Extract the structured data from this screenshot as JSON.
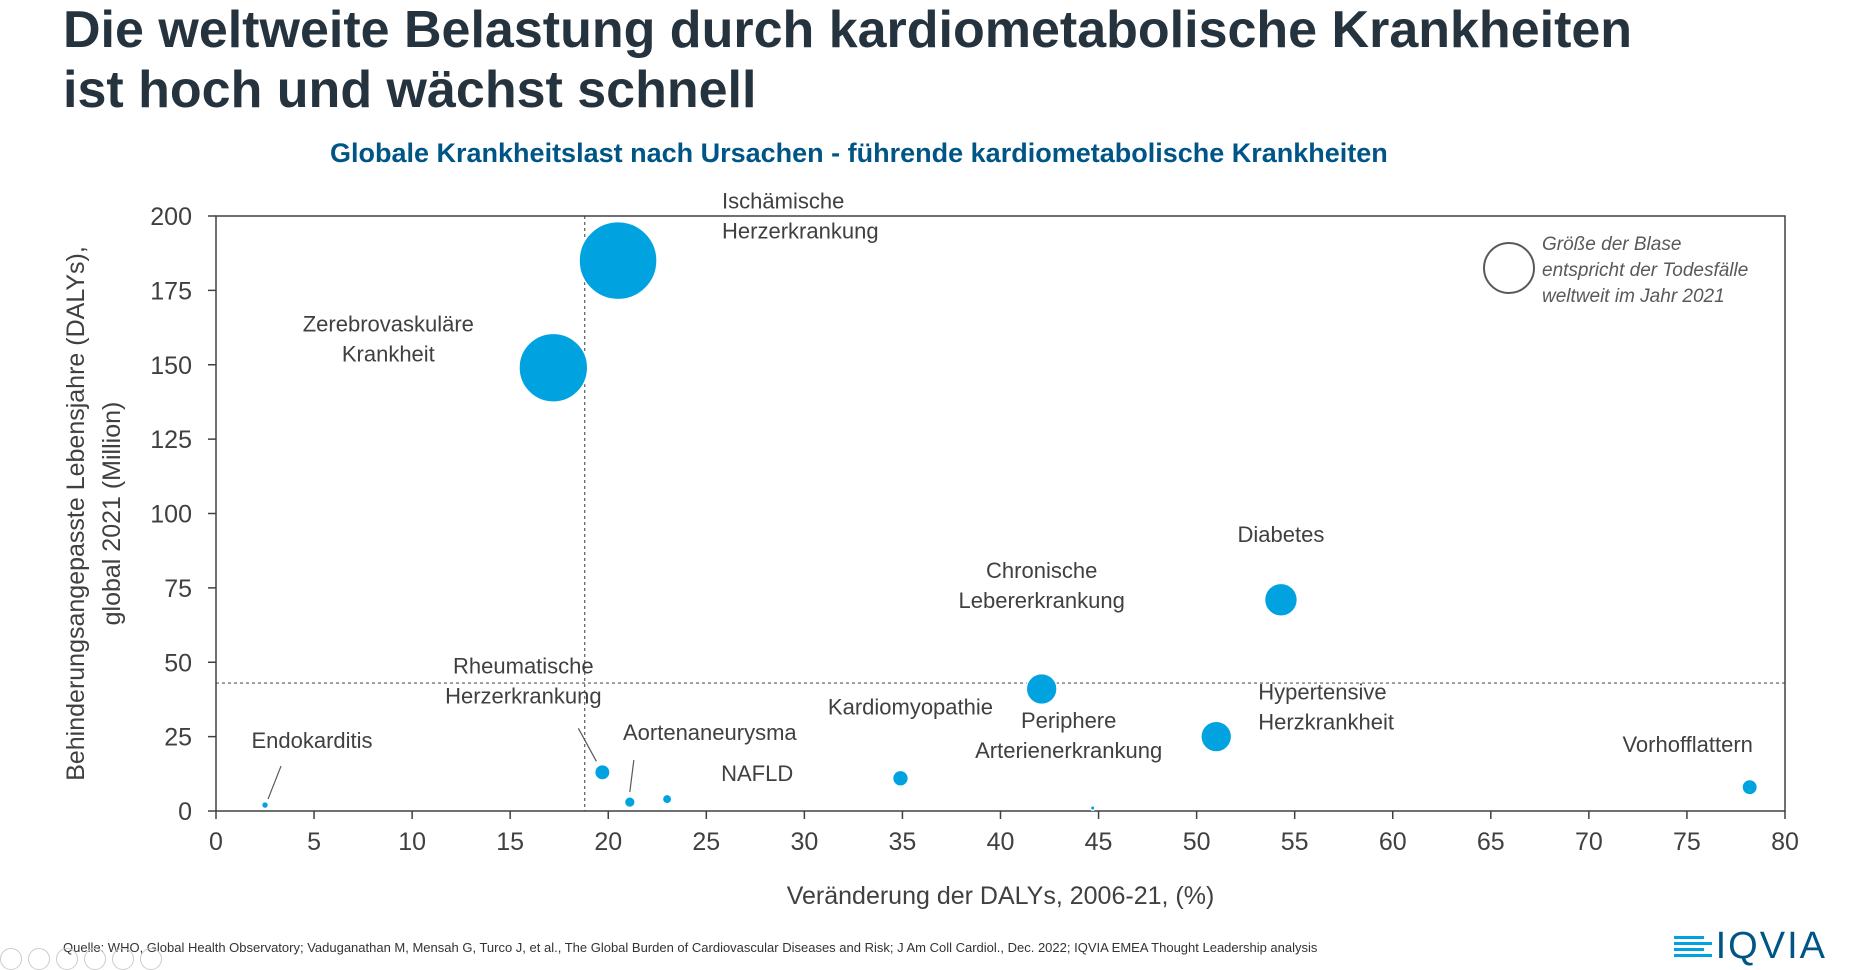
{
  "slide": {
    "title_line1": "Die weltweite Belastung durch kardiometabolische Krankheiten",
    "title_line2": "ist hoch und wächst schnell",
    "source": "Quelle: WHO, Global Health Observatory; Vaduganathan M, Mensah G, Turco J, et al., The Global Burden of Cardiovascular Diseases and Risk; J Am Coll Cardiol., Dec. 2022; IQVIA EMEA Thought Leadership analysis",
    "logo_text": "IQVIA"
  },
  "colors": {
    "bubble": "#00a3e0",
    "title": "#25333f",
    "chart_title": "#005587",
    "axis_text": "#404040"
  },
  "chart_data": {
    "type": "scatter",
    "title": "Globale Krankheitslast nach Ursachen - führende kardiometabolische Krankheiten",
    "xlabel": "Veränderung der DALYs, 2006-21, (%)",
    "ylabel_lines": [
      "Behinderungsangepasste Lebensjahre (DALYs),",
      "global 2021 (Million)"
    ],
    "xlim": [
      0,
      80
    ],
    "ylim": [
      0,
      200
    ],
    "xticks": [
      0,
      5,
      10,
      15,
      20,
      25,
      30,
      35,
      40,
      45,
      50,
      55,
      60,
      65,
      70,
      75,
      80
    ],
    "yticks": [
      0,
      25,
      50,
      75,
      100,
      125,
      150,
      175,
      200
    ],
    "grid": false,
    "reference_lines": {
      "x": 18.8,
      "y": 43
    },
    "bubble_size_note_lines": [
      "Größe der Blase",
      "entspricht der Todesfälle",
      "weltweit im Jahr 2021"
    ],
    "points": [
      {
        "label_lines": [
          "Ischämische",
          "Herzerkrankung"
        ],
        "x": 20.5,
        "y": 185,
        "size": 9.0
      },
      {
        "label_lines": [
          "Zerebrovaskuläre",
          "Krankheit"
        ],
        "x": 17.2,
        "y": 149,
        "size": 7.0
      },
      {
        "label_lines": [
          "Diabetes"
        ],
        "x": 54.3,
        "y": 71,
        "size": 1.6
      },
      {
        "label_lines": [
          "Chronische",
          "Lebererkrankung"
        ],
        "x": 42.1,
        "y": 41,
        "size": 1.4
      },
      {
        "label_lines": [
          "Hypertensive",
          "Herzkrankheit"
        ],
        "x": 51.0,
        "y": 25,
        "size": 1.4
      },
      {
        "label_lines": [
          "Kardiomyopathie"
        ],
        "x": 34.9,
        "y": 11,
        "size": 0.37
      },
      {
        "label_lines": [
          "Rheumatische",
          "Herzerkrankung"
        ],
        "x": 19.7,
        "y": 13,
        "size": 0.35
      },
      {
        "label_lines": [
          "Aortenaneurysma"
        ],
        "x": 21.1,
        "y": 3,
        "size": 0.17
      },
      {
        "label_lines": [
          "NAFLD"
        ],
        "x": 23.0,
        "y": 4,
        "size": 0.13
      },
      {
        "label_lines": [
          "Vorhofflattern"
        ],
        "x": 78.2,
        "y": 8,
        "size": 0.35
      },
      {
        "label_lines": [
          "Periphere",
          "Arterienerkrankung"
        ],
        "x": 44.7,
        "y": 1,
        "size": 0.03
      },
      {
        "label_lines": [
          "Endokarditis"
        ],
        "x": 2.5,
        "y": 2,
        "size": 0.07
      }
    ]
  }
}
